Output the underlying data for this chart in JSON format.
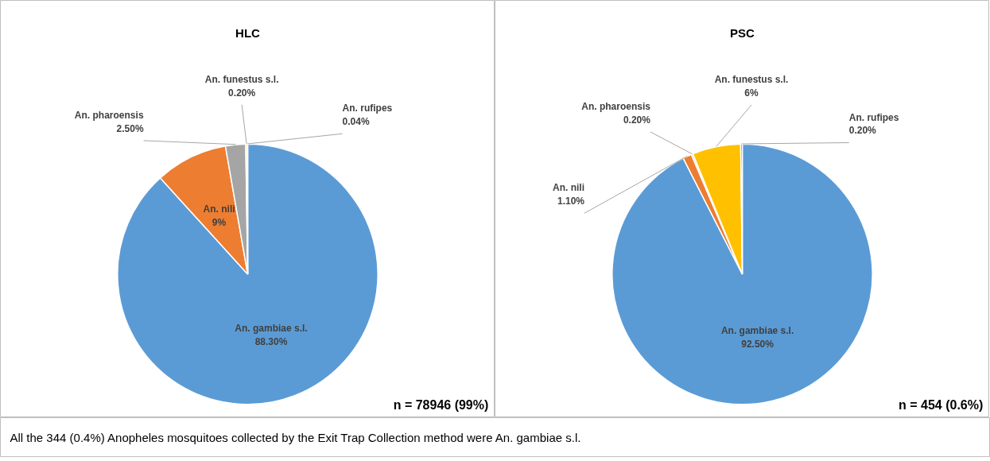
{
  "chart_data": [
    {
      "type": "pie",
      "title": "HLC",
      "categories": [
        "An. gambiae s.l.",
        "An. nili",
        "An. pharoensis",
        "An. funestus s.l.",
        "An. rufipes"
      ],
      "values": [
        88.3,
        9,
        2.5,
        0.2,
        0.04
      ],
      "colors": [
        "#5b9bd5",
        "#ed7d31",
        "#a5a5a5",
        "#ffc000",
        "#4472c4"
      ],
      "value_labels": [
        "88.30%",
        "9%",
        "2.50%",
        "0.20%",
        "0.04%"
      ],
      "annotations": [
        "n = 78946 (99%)",
        "All the 344 (0.4%)  Anopheles mosquitoes collected by the Exit Trap Collection method were An. gambiae s.l."
      ]
    },
    {
      "type": "pie",
      "title": "PSC",
      "categories": [
        "An. gambiae s.l.",
        "An. nili",
        "An. pharoensis",
        "An. funestus s.l.",
        "An. rufipes"
      ],
      "values": [
        92.5,
        1.1,
        0.2,
        6,
        0.2
      ],
      "colors": [
        "#5b9bd5",
        "#ed7d31",
        "#a5a5a5",
        "#ffc000",
        "#4472c4"
      ],
      "value_labels": [
        "92.50%",
        "1.10%",
        "0.20%",
        "6%",
        "0.20%"
      ],
      "annotations": [
        "n = 454 (0.6%)"
      ]
    }
  ]
}
